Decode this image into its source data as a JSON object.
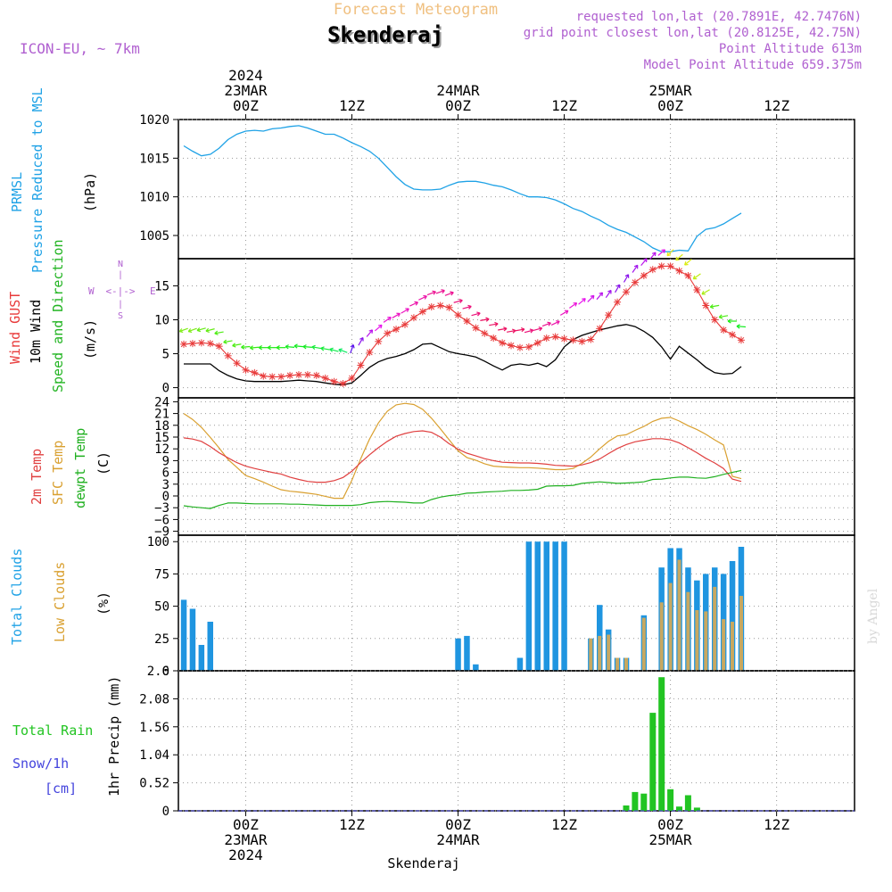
{
  "header": {
    "product_title": "Forecast Meteogram",
    "location": "Skenderaj",
    "model": "ICON-EU, ~ 7km",
    "requested_point": "requested lon,lat (20.7891E, 42.7476N)",
    "grid_point": "grid point closest lon,lat (20.8125E, 42.75N)",
    "point_altitude": "Point Altitude 613m",
    "model_altitude": "Model Point Altitude 659.375m"
  },
  "footer": {
    "location": "Skenderaj",
    "watermark": "by Angel"
  },
  "colors": {
    "pressure": "#1fa2e6",
    "gust": "#e83a3a",
    "wind": "#000000",
    "direction": "#22b422",
    "temp2m": "#e04040",
    "sfc_temp": "#d9a030",
    "dewpoint": "#20b020",
    "total_clouds": "#1f95e0",
    "low_clouds": "#c8a860",
    "rain": "#22c422",
    "snow": "#4444dd",
    "legend_purple": "#b060d0",
    "title_orange": "#f0c080"
  },
  "compass": {
    "n": "N",
    "s": "S",
    "w": "W",
    "e": "E",
    "arrow": "<-|->"
  },
  "chart_data": {
    "type": "line",
    "time_axis": {
      "start": "2024-03-22 17Z",
      "step_hours": 1,
      "range_hours": [
        0,
        63
      ],
      "top_ticks": [
        {
          "hour": 7,
          "lines": [
            "2024",
            "23MAR",
            "00Z"
          ]
        },
        {
          "hour": 19,
          "lines": [
            "12Z"
          ]
        },
        {
          "hour": 31,
          "lines": [
            "24MAR",
            "00Z"
          ]
        },
        {
          "hour": 43,
          "lines": [
            "12Z"
          ]
        },
        {
          "hour": 55,
          "lines": [
            "25MAR",
            "00Z"
          ]
        },
        {
          "hour": 67,
          "lines": [
            "12Z"
          ]
        }
      ],
      "bottom_ticks": [
        {
          "hour": 7,
          "lines": [
            "00Z",
            "23MAR",
            "2024"
          ]
        },
        {
          "hour": 19,
          "lines": [
            "12Z"
          ]
        },
        {
          "hour": 31,
          "lines": [
            "00Z",
            "24MAR"
          ]
        },
        {
          "hour": 43,
          "lines": [
            "12Z"
          ]
        },
        {
          "hour": 55,
          "lines": [
            "00Z",
            "25MAR"
          ]
        },
        {
          "hour": 67,
          "lines": [
            "12Z"
          ]
        }
      ]
    },
    "pressure": {
      "labels": [
        "PRMSL",
        "Pressure Reduced to MSL"
      ],
      "unit": "(hPa)",
      "ylim": [
        1002,
        1020
      ],
      "ticks": [
        1005,
        1010,
        1015,
        1020
      ],
      "values": [
        1016.6,
        1015.9,
        1015.3,
        1015.5,
        1016.3,
        1017.4,
        1018.1,
        1018.5,
        1018.6,
        1018.5,
        1018.8,
        1018.9,
        1019.1,
        1019.2,
        1018.9,
        1018.5,
        1018.1,
        1018.1,
        1017.6,
        1017.0,
        1016.5,
        1015.9,
        1015.0,
        1013.8,
        1012.6,
        1011.6,
        1011.0,
        1010.9,
        1010.9,
        1011.0,
        1011.5,
        1011.9,
        1012.0,
        1012.0,
        1011.8,
        1011.5,
        1011.3,
        1010.9,
        1010.4,
        1010.0,
        1010.0,
        1009.9,
        1009.6,
        1009.1,
        1008.5,
        1008.1,
        1007.5,
        1007.0,
        1006.3,
        1005.8,
        1005.4,
        1004.8,
        1004.2,
        1003.4,
        1002.9,
        1002.9,
        1003.1,
        1003.0,
        1004.9,
        1005.8,
        1006.0,
        1006.5,
        1007.2,
        1007.9
      ]
    },
    "wind": {
      "labels": {
        "gust": "Wind GUST",
        "wind": "10m Wind",
        "direction": "Speed and Direction"
      },
      "unit": "(m/s)",
      "ylim": [
        -1.5,
        19
      ],
      "ticks": [
        0,
        5,
        10,
        15
      ],
      "gust": [
        6.4,
        6.5,
        6.6,
        6.5,
        6.1,
        4.7,
        3.6,
        2.6,
        2.2,
        1.7,
        1.6,
        1.6,
        1.8,
        1.9,
        1.9,
        1.8,
        1.4,
        0.9,
        0.6,
        1.4,
        3.3,
        5.2,
        6.8,
        8.0,
        8.6,
        9.3,
        10.3,
        11.2,
        11.9,
        12.1,
        11.8,
        10.7,
        9.8,
        8.8,
        8.0,
        7.3,
        6.6,
        6.2,
        5.9,
        6.0,
        6.6,
        7.3,
        7.5,
        7.2,
        7.0,
        6.8,
        7.1,
        8.7,
        10.7,
        12.6,
        14.1,
        15.5,
        16.5,
        17.4,
        17.9,
        17.9,
        17.2,
        16.5,
        14.4,
        12.1,
        10.0,
        8.5,
        7.8,
        7.0
      ],
      "speed": [
        3.5,
        3.5,
        3.5,
        3.5,
        2.5,
        1.8,
        1.3,
        1.0,
        0.9,
        0.9,
        0.9,
        0.9,
        1.0,
        1.1,
        1.0,
        0.9,
        0.7,
        0.5,
        0.4,
        0.7,
        1.8,
        3.0,
        3.8,
        4.3,
        4.6,
        5.0,
        5.6,
        6.4,
        6.5,
        5.9,
        5.3,
        5.0,
        4.8,
        4.5,
        3.9,
        3.2,
        2.6,
        3.3,
        3.5,
        3.3,
        3.6,
        3.1,
        4.1,
        6.0,
        7.1,
        7.7,
        8.1,
        8.5,
        8.8,
        9.1,
        9.3,
        9.0,
        8.3,
        7.4,
        6.0,
        4.2,
        6.1,
        5.1,
        4.1,
        3.0,
        2.2,
        2.0,
        2.1,
        3.1
      ],
      "direction_deg": [
        70,
        70,
        75,
        75,
        80,
        80,
        80,
        85,
        85,
        90,
        90,
        90,
        95,
        95,
        95,
        100,
        100,
        105,
        110,
        200,
        210,
        220,
        230,
        235,
        240,
        240,
        245,
        245,
        250,
        250,
        250,
        255,
        255,
        255,
        260,
        260,
        260,
        260,
        260,
        255,
        255,
        250,
        245,
        240,
        235,
        230,
        225,
        220,
        215,
        210,
        210,
        215,
        220,
        220,
        230,
        45,
        50,
        50,
        55,
        60,
        80,
        80,
        90,
        95
      ]
    },
    "temperature": {
      "labels": [
        "2m Temp",
        "SFC Temp",
        "dewpt Temp"
      ],
      "unit": "(C)",
      "ylim": [
        -10,
        25
      ],
      "ticks": [
        -9,
        -6,
        -3,
        0,
        3,
        6,
        9,
        12,
        15,
        18,
        21,
        24
      ],
      "temp2m": [
        14.8,
        14.5,
        13.9,
        12.6,
        11.0,
        9.7,
        8.5,
        7.6,
        7.0,
        6.5,
        6.0,
        5.6,
        4.8,
        4.2,
        3.7,
        3.5,
        3.5,
        3.9,
        4.7,
        6.3,
        8.5,
        10.5,
        12.3,
        13.9,
        15.2,
        15.9,
        16.4,
        16.6,
        16.2,
        15.0,
        13.3,
        11.9,
        10.9,
        10.2,
        9.5,
        9.0,
        8.6,
        8.5,
        8.4,
        8.4,
        8.3,
        8.1,
        7.8,
        7.7,
        7.6,
        7.9,
        8.5,
        9.4,
        10.8,
        12.1,
        13.1,
        13.8,
        14.2,
        14.6,
        14.6,
        14.3,
        13.5,
        12.3,
        11.0,
        9.6,
        8.4,
        7.0,
        4.3,
        3.7
      ],
      "sfc": [
        21.0,
        19.5,
        17.5,
        14.9,
        12.2,
        9.3,
        7.3,
        5.2,
        4.4,
        3.5,
        2.5,
        1.6,
        1.2,
        1.0,
        0.7,
        0.4,
        -0.1,
        -0.6,
        -0.6,
        4.0,
        9.5,
        14.5,
        18.6,
        21.6,
        23.2,
        23.6,
        23.3,
        22.1,
        19.8,
        17.1,
        14.3,
        11.5,
        9.8,
        9.1,
        8.2,
        7.6,
        7.4,
        7.3,
        7.2,
        7.2,
        7.1,
        6.9,
        6.7,
        6.7,
        7.0,
        8.3,
        9.9,
        12.0,
        13.9,
        15.3,
        15.6,
        16.7,
        17.7,
        19.0,
        19.8,
        20.0,
        19.1,
        17.9,
        16.9,
        15.7,
        14.3,
        13.0,
        5.0,
        4.4
      ],
      "dewpt": [
        -2.5,
        -2.8,
        -3.0,
        -3.2,
        -2.4,
        -1.8,
        -1.8,
        -1.9,
        -2.0,
        -2.0,
        -2.0,
        -2.0,
        -2.1,
        -2.1,
        -2.2,
        -2.3,
        -2.4,
        -2.4,
        -2.4,
        -2.4,
        -2.2,
        -1.7,
        -1.5,
        -1.4,
        -1.5,
        -1.6,
        -1.8,
        -1.8,
        -0.9,
        -0.3,
        0.1,
        0.3,
        0.7,
        0.8,
        1.0,
        1.1,
        1.2,
        1.4,
        1.4,
        1.5,
        1.7,
        2.5,
        2.6,
        2.6,
        2.7,
        3.2,
        3.4,
        3.6,
        3.4,
        3.2,
        3.3,
        3.4,
        3.6,
        4.2,
        4.3,
        4.6,
        4.8,
        4.8,
        4.6,
        4.5,
        4.9,
        5.5,
        6.0,
        6.5
      ]
    },
    "clouds": {
      "labels": [
        "Total Clouds",
        "Low Clouds"
      ],
      "unit": "(%)",
      "ylim": [
        0,
        105
      ],
      "ticks": [
        0,
        25,
        50,
        75,
        100
      ],
      "total": [
        55,
        48,
        20,
        38,
        0,
        0,
        0,
        0,
        0,
        0,
        0,
        0,
        0,
        0,
        0,
        0,
        0,
        0,
        0,
        0,
        0,
        0,
        0,
        0,
        0,
        0,
        0,
        0,
        0,
        0,
        0,
        25,
        27,
        5,
        0,
        0,
        0,
        0,
        10,
        100,
        100,
        100,
        100,
        100,
        0,
        0,
        25,
        51,
        32,
        10,
        10,
        0,
        43,
        0,
        80,
        95,
        95,
        80,
        70,
        75,
        80,
        75,
        85,
        96
      ],
      "low": [
        0,
        0,
        0,
        0,
        0,
        0,
        0,
        0,
        0,
        0,
        0,
        0,
        0,
        0,
        0,
        0,
        0,
        0,
        0,
        0,
        0,
        0,
        0,
        0,
        0,
        0,
        0,
        0,
        0,
        0,
        0,
        0,
        0,
        0,
        0,
        0,
        0,
        0,
        0,
        0,
        0,
        0,
        0,
        0,
        0,
        0,
        25,
        27,
        28,
        10,
        10,
        0,
        41,
        0,
        53,
        68,
        86,
        61,
        47,
        46,
        65,
        40,
        38,
        58
      ]
    },
    "precip": {
      "labels": [
        "Total  Rain",
        "Snow/1h",
        "[cm]"
      ],
      "unit": "1hr Precip (mm)",
      "ylim": [
        0,
        2.6
      ],
      "ticks": [
        "0",
        "0.52",
        "1.04",
        "1.56",
        "2.08",
        "2.6"
      ],
      "rain": [
        0,
        0,
        0,
        0,
        0,
        0,
        0,
        0,
        0,
        0,
        0,
        0,
        0,
        0,
        0,
        0,
        0,
        0,
        0,
        0,
        0,
        0,
        0,
        0,
        0,
        0,
        0,
        0,
        0,
        0,
        0,
        0,
        0,
        0,
        0,
        0,
        0,
        0,
        0,
        0,
        0,
        0,
        0,
        0,
        0,
        0,
        0,
        0,
        0,
        0,
        0.1,
        0.35,
        0.32,
        1.82,
        2.48,
        0.4,
        0.08,
        0.29,
        0.06,
        0,
        0,
        0,
        0,
        0
      ],
      "snow": [
        0,
        0,
        0,
        0,
        0,
        0,
        0,
        0,
        0,
        0,
        0,
        0,
        0,
        0,
        0,
        0,
        0,
        0,
        0,
        0,
        0,
        0,
        0,
        0,
        0,
        0,
        0,
        0,
        0,
        0,
        0,
        0,
        0,
        0,
        0,
        0,
        0,
        0,
        0,
        0,
        0,
        0,
        0,
        0,
        0,
        0,
        0,
        0,
        0,
        0,
        0,
        0,
        0,
        0,
        0,
        0,
        0,
        0,
        0,
        0,
        0,
        0,
        0,
        0
      ]
    }
  }
}
